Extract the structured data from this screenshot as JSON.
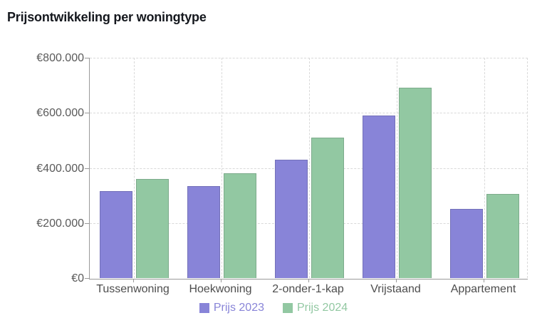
{
  "page_title": "Prijsontwikkeling per woningtype",
  "chart_data": {
    "type": "bar",
    "grouped": true,
    "title": "Prijsontwikkeling per woningtype",
    "categories": [
      "Tussenwoning",
      "Hoekwoning",
      "2-onder-1-kap",
      "Vrijstaand",
      "Appartement"
    ],
    "series": [
      {
        "name": "Prijs 2023",
        "color": "#8884d8",
        "values": [
          315000,
          335000,
          430000,
          590000,
          250000
        ]
      },
      {
        "name": "Prijs 2024",
        "color": "#92c8a2",
        "values": [
          360000,
          380000,
          510000,
          690000,
          305000
        ]
      }
    ],
    "xlabel": "",
    "ylabel": "",
    "ylim": [
      0,
      800000
    ],
    "ytick_values": [
      0,
      200000,
      400000,
      600000,
      800000
    ],
    "ytick_labels": [
      "€0",
      "€200.000",
      "€400.000",
      "€600.000",
      "€800.000"
    ],
    "grid": true,
    "grid_style": "dashed",
    "legend_position": "bottom",
    "legend": [
      "Prijs 2023",
      "Prijs 2024"
    ]
  },
  "colors": {
    "series_2023": "#8884d8",
    "series_2024": "#92c8a2",
    "axis_line": "#9a9a9a",
    "gridline": "#d9d9d9",
    "axis_text": "#555555",
    "title_text": "#15181e",
    "background": "#ffffff"
  }
}
